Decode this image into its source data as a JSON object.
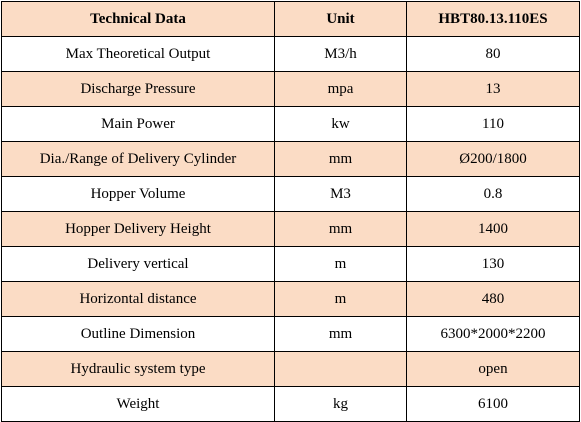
{
  "table": {
    "headers": [
      "Technical Data",
      "Unit",
      "HBT80.13.110ES"
    ],
    "rows": [
      {
        "param": "Max Theoretical Output",
        "unit": "M3/h",
        "value": "80"
      },
      {
        "param": "Discharge Pressure",
        "unit": "mpa",
        "value": "13"
      },
      {
        "param": "Main Power",
        "unit": "kw",
        "value": "110"
      },
      {
        "param": "Dia./Range of Delivery Cylinder",
        "unit": "mm",
        "value": "Ø200/1800"
      },
      {
        "param": "Hopper Volume",
        "unit": "M3",
        "value": "0.8"
      },
      {
        "param": "Hopper Delivery Height",
        "unit": "mm",
        "value": "1400"
      },
      {
        "param": "Delivery vertical",
        "unit": "m",
        "value": "130"
      },
      {
        "param": "Horizontal distance",
        "unit": "m",
        "value": "480"
      },
      {
        "param": "Outline Dimension",
        "unit": "mm",
        "value": "6300*2000*2200"
      },
      {
        "param": "Hydraulic system type",
        "unit": "",
        "value": "open"
      },
      {
        "param": "Weight",
        "unit": "kg",
        "value": "6100"
      }
    ]
  },
  "colors": {
    "stripe": "#fbdcc5",
    "plain": "#ffffff",
    "border": "#000000"
  }
}
